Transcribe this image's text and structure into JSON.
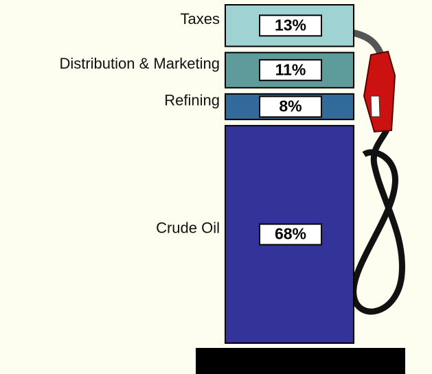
{
  "chart_data": {
    "type": "stacked_bar",
    "categories": [
      "Taxes",
      "Distribution & Marketing",
      "Refining",
      "Crude Oil"
    ],
    "values": [
      13,
      11,
      8,
      68
    ],
    "value_labels": [
      "13%",
      "11%",
      "8%",
      "68%"
    ],
    "colors": [
      "#9fd3d3",
      "#5e9b9b",
      "#336a9c",
      "#333399"
    ]
  }
}
